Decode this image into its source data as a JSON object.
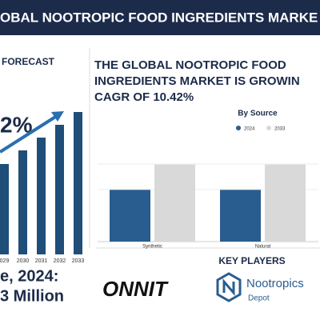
{
  "header": {
    "title": "OBAL NOOTROPIC FOOD INGREDIENTS MARKE"
  },
  "forecast": {
    "label": "FORECAST",
    "cagr": "2%",
    "market_label": "e, 2024:",
    "market_value": "3 Million",
    "chart_data": {
      "type": "bar",
      "categories": [
        "029",
        "2030",
        "2031",
        "2032",
        "2033"
      ],
      "values": [
        113,
        130,
        146,
        162,
        178
      ],
      "color": "#1f4e79",
      "ylim": [
        0,
        200
      ]
    }
  },
  "headline": {
    "lines": [
      "THE GLOBAL NOOTROPIC FOOD",
      "INGREDIENTS MARKET IS GROWIN",
      "CAGR OF 10.42%"
    ]
  },
  "chart_data": {
    "type": "bar",
    "title": "By Source",
    "categories": [
      "Synthetic",
      "Natural"
    ],
    "series": [
      {
        "name": "2024",
        "color": "#2a5d8f",
        "values": [
          49,
          49
        ]
      },
      {
        "name": "2033",
        "color": "#d9d9d9",
        "values": [
          73,
          73
        ]
      }
    ],
    "ylim": [
      0,
      100
    ],
    "legend": "top"
  },
  "key_players": {
    "title": "KEY PLAYERS",
    "companies": [
      "ONNIT",
      "Nootropics",
      "Depot"
    ]
  }
}
